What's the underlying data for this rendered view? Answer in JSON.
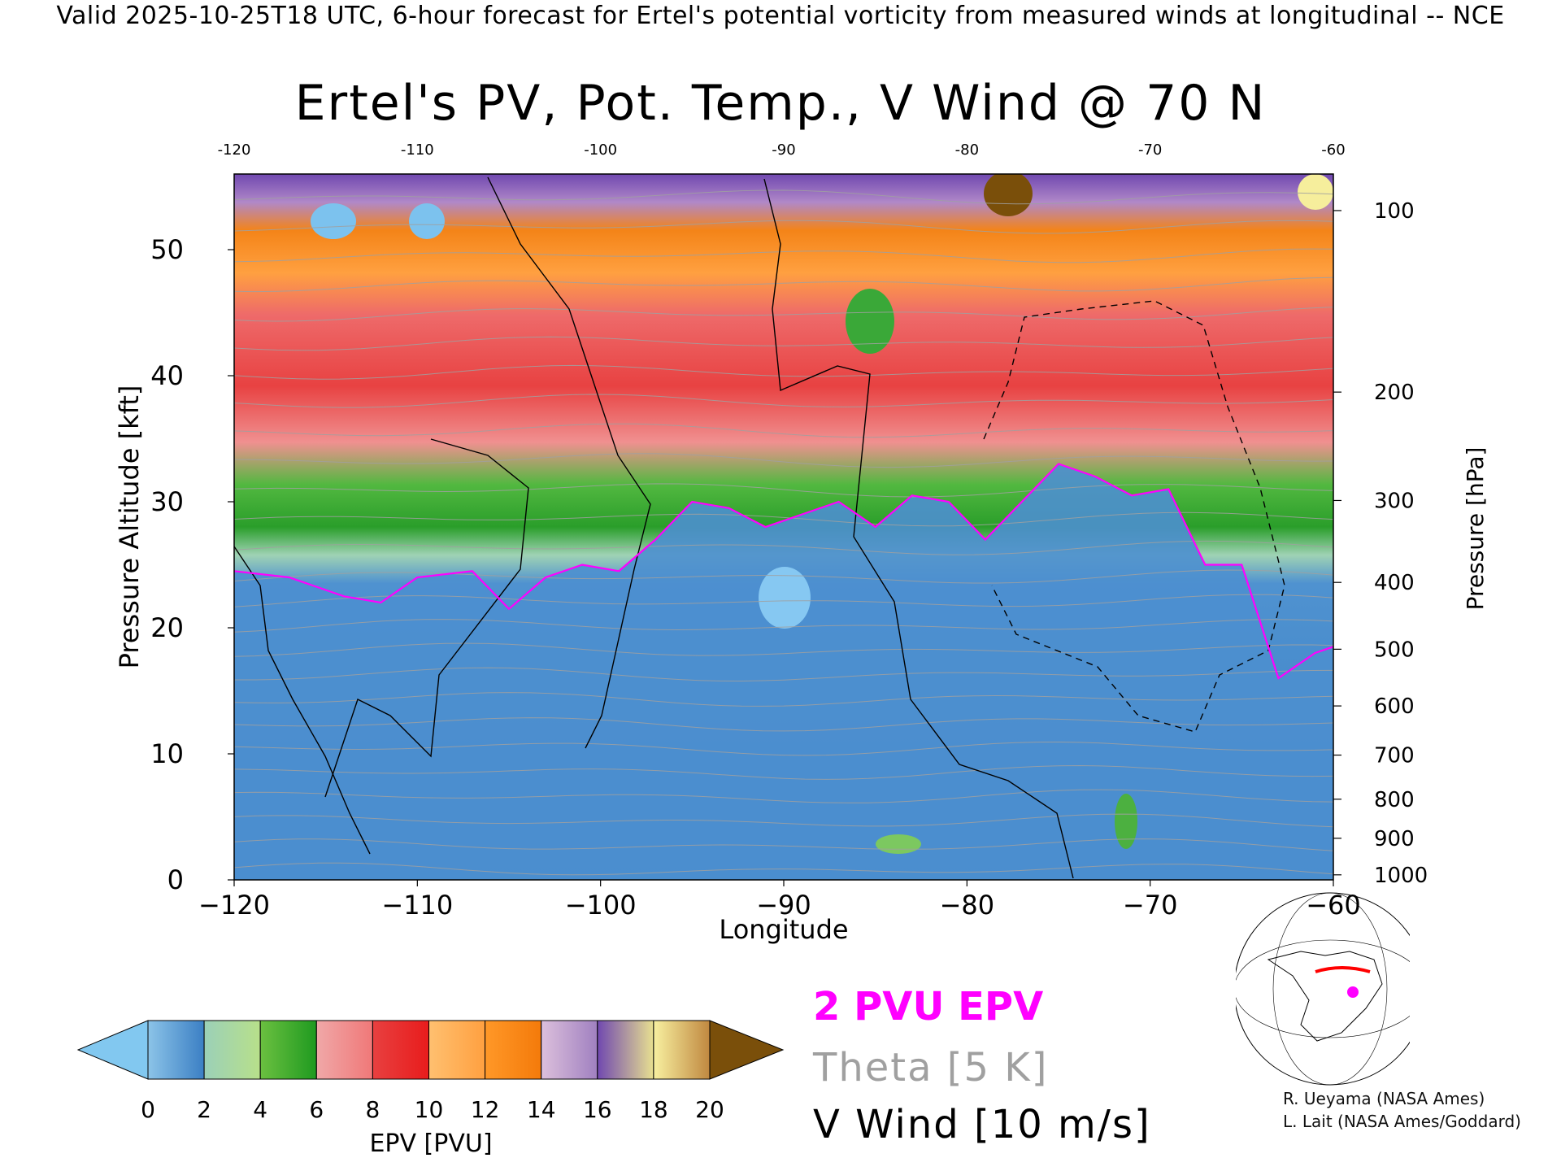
{
  "header": {
    "top_note": "Valid 2025-10-25T18 UTC, 6-hour forecast for Ertel's potential vorticity from measured winds at longitudinal -- NCE",
    "title": "Ertel's PV, Pot. Temp., V Wind @ 70 N"
  },
  "chart_data": {
    "type": "heatmap",
    "title": "Ertel's PV, Pot. Temp., V Wind @ 70 N",
    "xlabel": "Longitude",
    "ylabel": "Pressure Altitude [kft]",
    "y2label": "Pressure [hPa]",
    "xlim": [
      -120,
      -60
    ],
    "ylim": [
      0,
      56
    ],
    "x_ticks": [
      "−120",
      "−110",
      "−100",
      "−90",
      "−80",
      "−70",
      "−60"
    ],
    "x_top_ticks": [
      "-120",
      "-110",
      "-100",
      "-90",
      "-80",
      "-70",
      "-60"
    ],
    "y_ticks": [
      "0",
      "10",
      "20",
      "30",
      "40",
      "50"
    ],
    "pressure_ticks": [
      {
        "label": "1000",
        "kft": 0.4
      },
      {
        "label": "900",
        "kft": 3.3
      },
      {
        "label": "800",
        "kft": 6.4
      },
      {
        "label": "700",
        "kft": 9.9
      },
      {
        "label": "600",
        "kft": 13.8
      },
      {
        "label": "500",
        "kft": 18.3
      },
      {
        "label": "400",
        "kft": 23.6
      },
      {
        "label": "300",
        "kft": 30.1
      },
      {
        "label": "200",
        "kft": 38.7
      },
      {
        "label": "100",
        "kft": 53.1
      }
    ],
    "tropopause_2pvu": {
      "name": "2 PVU EPV",
      "lon": [
        -120,
        -117,
        -114,
        -112,
        -110,
        -107,
        -105,
        -103,
        -101,
        -99,
        -97,
        -95,
        -93,
        -91,
        -89,
        -87,
        -85,
        -83,
        -81,
        -79,
        -77,
        -75,
        -73,
        -71,
        -69,
        -67,
        -65,
        -63,
        -61,
        -60
      ],
      "kft": [
        24.5,
        24.0,
        22.5,
        22.0,
        24.0,
        24.5,
        21.5,
        24.0,
        25.0,
        24.5,
        27.0,
        30.0,
        29.5,
        28.0,
        29.0,
        30.0,
        28.0,
        30.5,
        30.0,
        27.0,
        30.0,
        33.0,
        32.0,
        30.5,
        31.0,
        25.0,
        25.0,
        16.0,
        18.0,
        18.5
      ]
    },
    "colorbar": {
      "label": "EPV [PVU]",
      "ticks": [
        "0",
        "2",
        "4",
        "6",
        "8",
        "10",
        "12",
        "14",
        "16",
        "18",
        "20"
      ],
      "range": [
        0,
        20
      ],
      "under_color": "#82c8f0",
      "over_color": "#7a4f0a",
      "bins": [
        {
          "from": 0,
          "to": 2,
          "colors": [
            "#8cc4e8",
            "#3b7fc4"
          ]
        },
        {
          "from": 2,
          "to": 4,
          "colors": [
            "#9bd0b8",
            "#b8e08a"
          ]
        },
        {
          "from": 4,
          "to": 6,
          "colors": [
            "#6bc040",
            "#1f9a20"
          ]
        },
        {
          "from": 6,
          "to": 8,
          "colors": [
            "#f0a8a8",
            "#f07878"
          ]
        },
        {
          "from": 8,
          "to": 10,
          "colors": [
            "#e84040",
            "#e81c1c"
          ]
        },
        {
          "from": 10,
          "to": 12,
          "colors": [
            "#ffc070",
            "#ffa040"
          ]
        },
        {
          "from": 12,
          "to": 14,
          "colors": [
            "#ff9828",
            "#f47a0a"
          ]
        },
        {
          "from": 14,
          "to": 16,
          "colors": [
            "#dcc0dc",
            "#a080c0"
          ]
        },
        {
          "from": 16,
          "to": 18,
          "colors": [
            "#7048b0",
            "#e8e090"
          ]
        },
        {
          "from": 18,
          "to": 20,
          "colors": [
            "#f8f0a0",
            "#c08840"
          ]
        }
      ]
    }
  },
  "legend": {
    "epv_2pvu": "2 PVU EPV",
    "theta": "Theta [5 K]",
    "vwind": "V Wind [10 m/s]"
  },
  "credits": {
    "line1": "R. Ueyama (NASA Ames)",
    "line2": "L. Lait (NASA Ames/Goddard)"
  },
  "colors": {
    "tropopause": "#ff00ff",
    "theta": "#a0a0a0",
    "vwind": "#000000"
  }
}
